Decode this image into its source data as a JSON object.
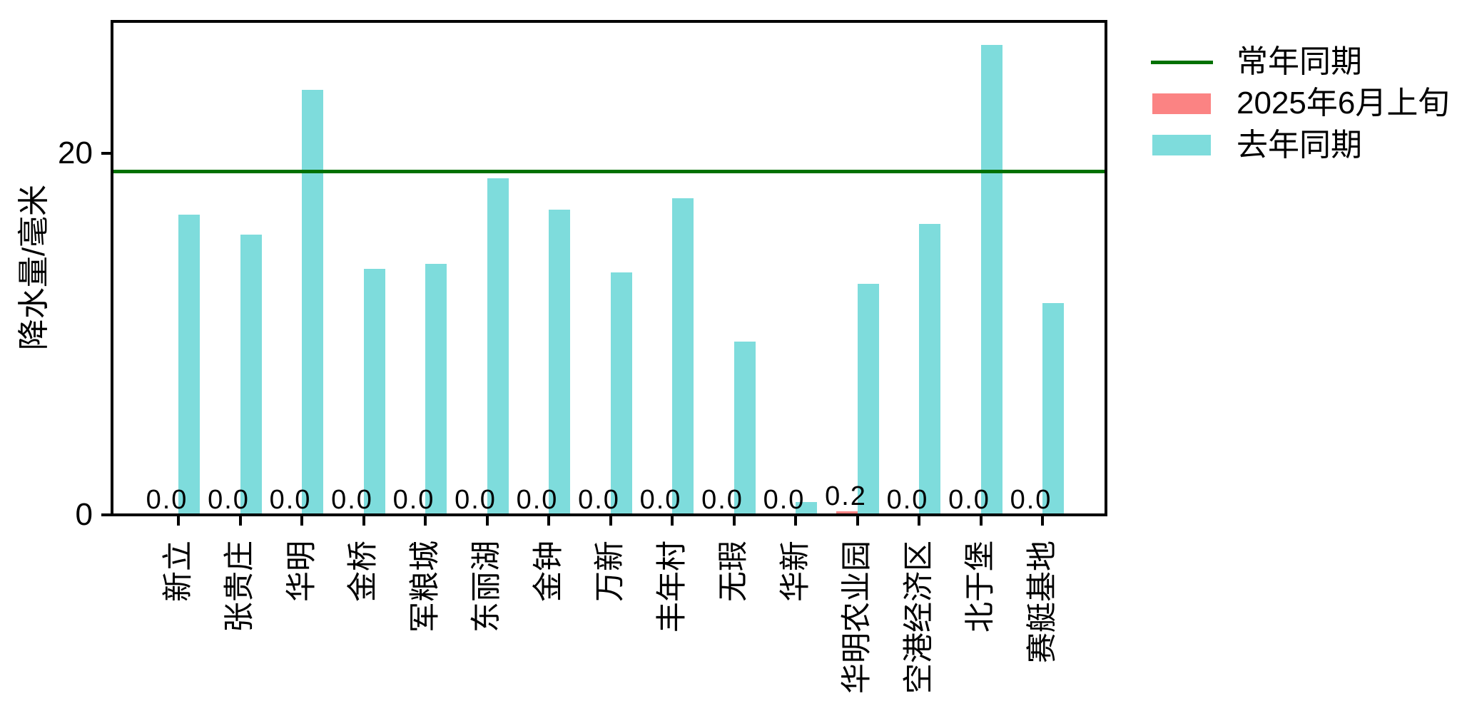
{
  "figure": {
    "background": "#ffffff",
    "y_axis_label": "降水量/毫米"
  },
  "chart_data": {
    "type": "bar",
    "title": "",
    "xlabel": "",
    "ylabel": "降水量/毫米",
    "categories": [
      "新立",
      "张贵庄",
      "华明",
      "金桥",
      "军粮城",
      "东丽湖",
      "金钟",
      "万新",
      "丰年村",
      "无瑕",
      "华新",
      "华明农业园",
      "空港经济区",
      "北于堡",
      "赛艇基地"
    ],
    "series": [
      {
        "name": "2025年6月上旬",
        "color": "#FB8383",
        "values": [
          0.0,
          0.0,
          0.0,
          0.0,
          0.0,
          0.0,
          0.0,
          0.0,
          0.0,
          0.0,
          0.0,
          0.2,
          0.0,
          0.0,
          0.0
        ],
        "bar_labels": [
          "0.0",
          "0.0",
          "0.0",
          "0.0",
          "0.0",
          "0.0",
          "0.0",
          "0.0",
          "0.0",
          "0.0",
          "0.0",
          "0.2",
          "0.0",
          "0.0",
          "0.0"
        ]
      },
      {
        "name": "去年同期",
        "color": "#7EDCDC",
        "values": [
          16.6,
          15.5,
          23.5,
          13.6,
          13.9,
          18.6,
          16.9,
          13.4,
          17.5,
          9.6,
          0.7,
          12.8,
          16.1,
          26.0,
          11.7
        ]
      }
    ],
    "reference_line": {
      "name": "常年同期",
      "value": 19.0,
      "color": "#017101"
    },
    "y_ticks": [
      0,
      20
    ],
    "ylim": [
      0,
      27.3
    ],
    "grid": false,
    "legend": {
      "position": "outside-upper-right",
      "entries": [
        "常年同期",
        "2025年6月上旬",
        "去年同期"
      ]
    }
  }
}
